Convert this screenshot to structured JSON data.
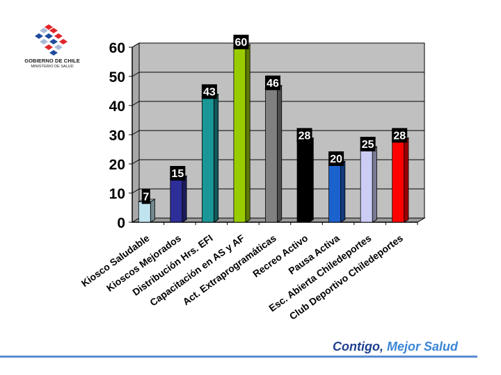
{
  "logo": {
    "line1": "GOBIERNO DE CHILE",
    "line2": "MINISTERIO DE SALUD",
    "colors": [
      "#e0262b",
      "#1f4b9c",
      "#a9b9d6"
    ]
  },
  "slogan": {
    "main": "Contigo,",
    "accent": "Mejor Salud",
    "main_color": "#1f3f8f",
    "accent_color": "#3a86d6"
  },
  "chart_data": {
    "type": "bar",
    "categories": [
      "Kiosco Saludable",
      "Kioscos Mejorados",
      "Distribución Hrs. EFI",
      "Capacitación en AS y AF",
      "Act. Extraprogramáticas",
      "Recreo Activo",
      "Pausa Activa",
      "Esc. Abierta Chiledeportes",
      "Club Deportivo Chiledeportes"
    ],
    "values": [
      7,
      15,
      43,
      60,
      46,
      28,
      20,
      25,
      28
    ],
    "data_labels": [
      "7",
      "15",
      "43",
      "60",
      "46",
      "28",
      "20",
      "25",
      "28"
    ],
    "colors": [
      "#bfe3ef",
      "#2e2e99",
      "#1a9696",
      "#99cc00",
      "#808080",
      "#000000",
      "#1c62cf",
      "#cccdf5",
      "#ff0000"
    ],
    "yticks": [
      "0",
      "10",
      "20",
      "30",
      "40",
      "50",
      "60"
    ],
    "ylim": [
      0,
      60
    ],
    "grid": true,
    "legend": "none"
  }
}
